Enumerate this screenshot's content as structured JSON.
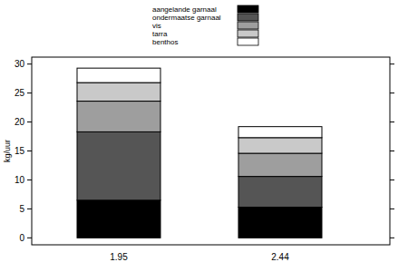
{
  "chart_data": {
    "type": "bar",
    "stacked": true,
    "legend": "top",
    "y_label": "kg/uur",
    "categories": [
      "1.95",
      "2.44"
    ],
    "series": [
      {
        "name": "aangelande garnaal",
        "color": "#000000",
        "values": [
          6.5,
          5.3
        ]
      },
      {
        "name": "ondermaatse garnaal",
        "color": "#555555",
        "values": [
          11.8,
          5.3
        ]
      },
      {
        "name": "vis",
        "color": "#9e9e9e",
        "values": [
          5.3,
          4.0
        ]
      },
      {
        "name": "tarra",
        "color": "#c9c9c9",
        "values": [
          3.2,
          2.7
        ]
      },
      {
        "name": "benthos",
        "color": "#ffffff",
        "values": [
          2.5,
          1.9
        ]
      }
    ],
    "ylim": [
      -1.2,
      31.2
    ],
    "yticks": [
      0,
      5,
      10,
      15,
      20,
      25,
      30
    ]
  }
}
